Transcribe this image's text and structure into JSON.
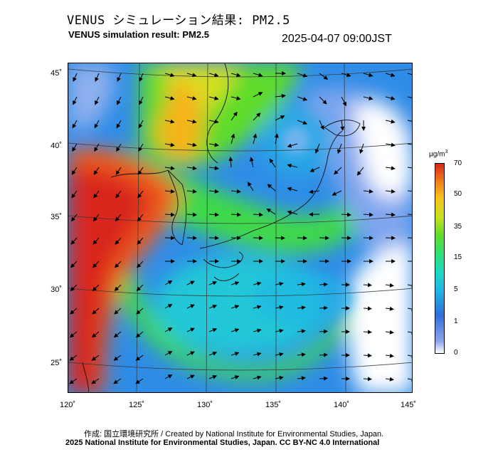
{
  "header": {
    "title_jp": "VENUS シミュレーション結果: PM2.5",
    "title_en": "VENUS simulation result: PM2.5",
    "timestamp": "2025-04-07 09:00JST"
  },
  "map": {
    "lon_labels": [
      "120˚",
      "125˚",
      "130˚",
      "135˚",
      "140˚",
      "145˚"
    ],
    "lat_labels": [
      "45˚",
      "40˚",
      "35˚",
      "30˚",
      "25˚"
    ],
    "lon_range": [
      120,
      145
    ],
    "lat_range": [
      23,
      46
    ],
    "field": "PM2.5 concentration with wind vectors"
  },
  "colorbar": {
    "unit_base": "μg/m",
    "unit_exp": "3",
    "ticks": [
      "70",
      "50",
      "35",
      "15",
      "5",
      "1",
      "0"
    ],
    "colors": [
      "#ffffff",
      "#8fa6ee",
      "#2e6dd9",
      "#21b0e6",
      "#1ed6c8",
      "#2de07a",
      "#5fdc2c",
      "#c8e020",
      "#f7c21c",
      "#ef7a1a",
      "#d8261a"
    ]
  },
  "footer": {
    "credit_line1": "作成: 国立環境研究所 / Created by National Institute for Environmental Studies, Japan.",
    "credit_line2": "2025 National Institute for Environmental Studies, Japan. CC BY-NC 4.0 International"
  }
}
